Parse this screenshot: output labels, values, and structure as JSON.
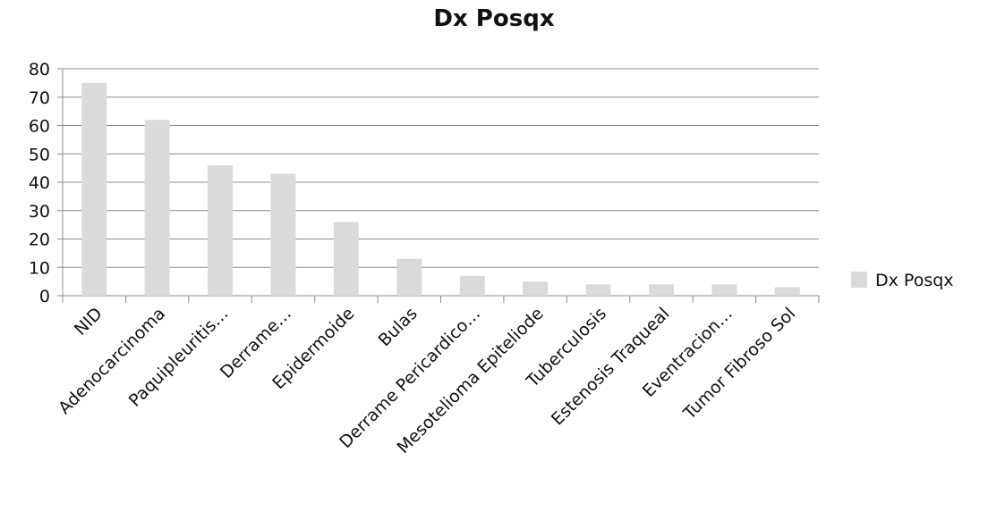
{
  "chart_data": {
    "type": "bar",
    "title": "Dx Posqx",
    "xlabel": "",
    "ylabel": "",
    "ylim": [
      0,
      80
    ],
    "yticks": [
      0,
      10,
      20,
      30,
      40,
      50,
      60,
      70,
      80
    ],
    "grid": true,
    "legend_position": "right",
    "categories": [
      "NID",
      "Adenocarcinoma",
      "Paquipleuritis…",
      "Derrame…",
      "Epidermoide",
      "Bulas",
      "Derrame Pericardico…",
      "Mesotelioma Epiteliode",
      "Tuberculosis",
      "Estenosis Traqueal",
      "Eventracion…",
      "Tumor Fibroso Sol"
    ],
    "series": [
      {
        "name": "Dx Posqx",
        "color": "#dadada",
        "values": [
          75,
          62,
          46,
          43,
          26,
          13,
          7,
          5,
          4,
          4,
          4,
          3
        ]
      }
    ]
  }
}
